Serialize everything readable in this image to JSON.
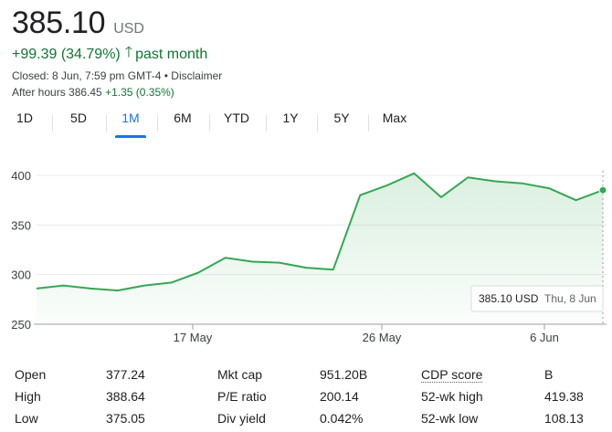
{
  "quote": {
    "price": "385.10",
    "currency": "USD",
    "change": "+99.39 (34.79%)",
    "arrow": "🡑",
    "period": "past month",
    "closed_text": "Closed: 8 Jun, 7:59 pm GMT-4 • Disclaimer",
    "after_hours_label": "After hours 386.45",
    "after_hours_change": "+1.35 (0.35%)"
  },
  "tabs": [
    {
      "label": "1D",
      "active": false
    },
    {
      "label": "5D",
      "active": false
    },
    {
      "label": "1M",
      "active": true
    },
    {
      "label": "6M",
      "active": false
    },
    {
      "label": "YTD",
      "active": false
    },
    {
      "label": "1Y",
      "active": false
    },
    {
      "label": "5Y",
      "active": false
    },
    {
      "label": "Max",
      "active": false
    }
  ],
  "chart_data": {
    "type": "area",
    "yticks": [
      250,
      300,
      350,
      400
    ],
    "ylim": [
      250,
      412
    ],
    "xtick_labels": [
      "17 May",
      "26 May",
      "6 Jun"
    ],
    "series": [
      {
        "values": [
          286,
          289,
          286,
          284,
          289,
          292,
          302,
          317,
          313,
          312,
          307,
          305,
          380,
          390,
          402,
          378,
          398,
          394,
          392,
          387,
          375,
          385.1
        ]
      }
    ],
    "tooltip": {
      "value": "385.10 USD",
      "date": "Thu, 8 Jun"
    },
    "colors": {
      "line": "#34a853",
      "fill": "#e6f4ea",
      "grid": "#e8eaed"
    }
  },
  "stats": {
    "col1": [
      {
        "label": "Open",
        "value": "377.24"
      },
      {
        "label": "High",
        "value": "388.64"
      },
      {
        "label": "Low",
        "value": "375.05"
      }
    ],
    "col2": [
      {
        "label": "Mkt cap",
        "value": "951.20B"
      },
      {
        "label": "P/E ratio",
        "value": "200.14"
      },
      {
        "label": "Div yield",
        "value": "0.042%"
      }
    ],
    "col3": [
      {
        "label": "CDP score",
        "value": "B"
      },
      {
        "label": "52-wk high",
        "value": "419.38"
      },
      {
        "label": "52-wk low",
        "value": "108.13"
      }
    ]
  }
}
